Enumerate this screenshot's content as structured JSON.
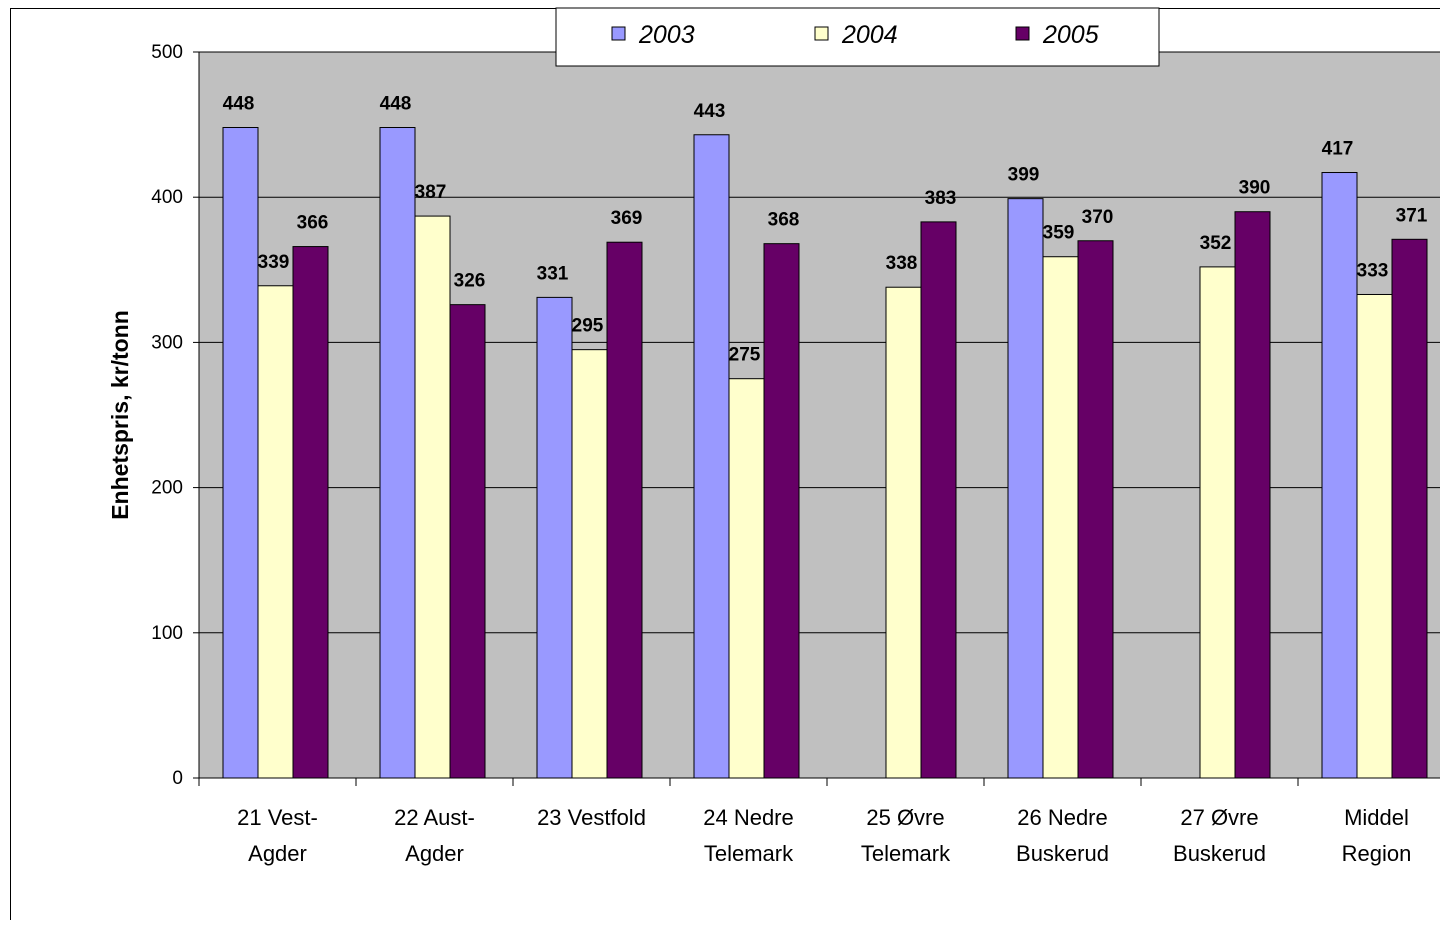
{
  "chart_data": {
    "type": "bar",
    "ylabel": "Enhetspris, kr/tonn",
    "ylim": [
      0,
      500
    ],
    "yticks": [
      0,
      100,
      200,
      300,
      400,
      500
    ],
    "grid": true,
    "legend_position": "top",
    "categories": [
      [
        "21 Vest-",
        "Agder"
      ],
      [
        "22 Aust-",
        "Agder"
      ],
      [
        "23 Vestfold"
      ],
      [
        "24 Nedre",
        "Telemark"
      ],
      [
        "25 Øvre",
        "Telemark"
      ],
      [
        "26 Nedre",
        "Buskerud"
      ],
      [
        "27 Øvre",
        "Buskerud"
      ],
      [
        "Middel",
        "Region"
      ]
    ],
    "series": [
      {
        "name": "2003",
        "color": "#9999ff",
        "values": [
          448,
          448,
          331,
          443,
          null,
          399,
          null,
          417
        ]
      },
      {
        "name": "2004",
        "color": "#ffffcc",
        "values": [
          339,
          387,
          295,
          275,
          338,
          359,
          352,
          333
        ]
      },
      {
        "name": "2005",
        "color": "#660066",
        "values": [
          366,
          326,
          369,
          368,
          383,
          370,
          390,
          371
        ]
      }
    ],
    "plot_background": "#c0c0c0"
  }
}
